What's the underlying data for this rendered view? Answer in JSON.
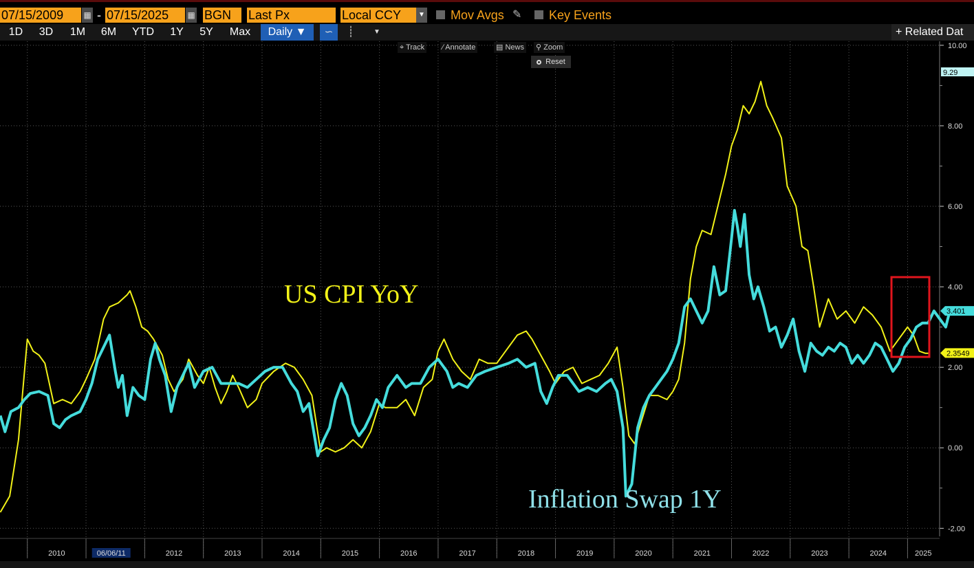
{
  "header": {
    "start_date": "07/15/2009",
    "separator": "-",
    "end_date": "07/15/2025",
    "source": "BGN",
    "field": "Last Px",
    "currency": "Local CCY",
    "mov_avgs_label": "Mov Avgs",
    "key_events_label": "Key Events"
  },
  "toolbar": {
    "ranges": [
      "1D",
      "3D",
      "1M",
      "6M",
      "YTD",
      "1Y",
      "5Y",
      "Max"
    ],
    "frequency": "Daily ▼",
    "related_label": "+ Related Dat"
  },
  "chart_tools": {
    "track": "Track",
    "annotate": "Annotate",
    "news": "News",
    "zoom": "Zoom",
    "reset": "Reset"
  },
  "colors": {
    "cpi": "#f2f218",
    "swap": "#45dcdc",
    "accent_orange": "#f7a21b",
    "highlight_box": "#e0151d"
  },
  "chart_data": {
    "type": "line",
    "x_axis": {
      "labels": [
        "2010",
        "2011",
        "2012",
        "2013",
        "2014",
        "2015",
        "2016",
        "2017",
        "2018",
        "2019",
        "2020",
        "2021",
        "2022",
        "2023",
        "2024",
        "2025"
      ],
      "cursor_label": "06/06/11",
      "range": [
        "2009-07-15",
        "2025-07-15"
      ]
    },
    "y_axis": {
      "ticks": [
        "10.00",
        "8.00",
        "6.00",
        "4.00",
        "2.00",
        "0.00",
        "-2.00"
      ],
      "range": [
        -2.2,
        10.1
      ],
      "position": "right"
    },
    "grid": true,
    "series": [
      {
        "name": "US CPI YoY",
        "last_value": "2.3549",
        "points": [
          [
            2009.54,
            -1.6
          ],
          [
            2009.7,
            -1.2
          ],
          [
            2009.85,
            0.2
          ],
          [
            2010.0,
            2.7
          ],
          [
            2010.1,
            2.4
          ],
          [
            2010.2,
            2.3
          ],
          [
            2010.3,
            2.1
          ],
          [
            2010.45,
            1.1
          ],
          [
            2010.6,
            1.2
          ],
          [
            2010.75,
            1.1
          ],
          [
            2010.9,
            1.4
          ],
          [
            2011.0,
            1.7
          ],
          [
            2011.15,
            2.2
          ],
          [
            2011.3,
            3.2
          ],
          [
            2011.4,
            3.5
          ],
          [
            2011.55,
            3.6
          ],
          [
            2011.7,
            3.8
          ],
          [
            2011.75,
            3.9
          ],
          [
            2011.85,
            3.5
          ],
          [
            2011.95,
            3.0
          ],
          [
            2012.05,
            2.9
          ],
          [
            2012.15,
            2.7
          ],
          [
            2012.3,
            2.3
          ],
          [
            2012.4,
            1.7
          ],
          [
            2012.5,
            1.4
          ],
          [
            2012.65,
            1.7
          ],
          [
            2012.75,
            2.2
          ],
          [
            2012.9,
            1.8
          ],
          [
            2013.0,
            1.6
          ],
          [
            2013.1,
            2.0
          ],
          [
            2013.2,
            1.5
          ],
          [
            2013.3,
            1.1
          ],
          [
            2013.4,
            1.4
          ],
          [
            2013.5,
            1.8
          ],
          [
            2013.6,
            1.5
          ],
          [
            2013.75,
            1.0
          ],
          [
            2013.9,
            1.2
          ],
          [
            2014.0,
            1.6
          ],
          [
            2014.2,
            1.9
          ],
          [
            2014.4,
            2.1
          ],
          [
            2014.55,
            2.0
          ],
          [
            2014.7,
            1.7
          ],
          [
            2014.85,
            1.3
          ],
          [
            2015.0,
            -0.1
          ],
          [
            2015.1,
            0.0
          ],
          [
            2015.25,
            -0.1
          ],
          [
            2015.4,
            0.0
          ],
          [
            2015.55,
            0.2
          ],
          [
            2015.7,
            0.0
          ],
          [
            2015.85,
            0.4
          ],
          [
            2016.0,
            1.1
          ],
          [
            2016.1,
            1.0
          ],
          [
            2016.3,
            1.0
          ],
          [
            2016.45,
            1.2
          ],
          [
            2016.6,
            0.8
          ],
          [
            2016.75,
            1.5
          ],
          [
            2016.9,
            1.7
          ],
          [
            2017.0,
            2.4
          ],
          [
            2017.1,
            2.7
          ],
          [
            2017.25,
            2.2
          ],
          [
            2017.4,
            1.9
          ],
          [
            2017.55,
            1.7
          ],
          [
            2017.7,
            2.2
          ],
          [
            2017.85,
            2.1
          ],
          [
            2018.0,
            2.1
          ],
          [
            2018.15,
            2.4
          ],
          [
            2018.35,
            2.8
          ],
          [
            2018.5,
            2.9
          ],
          [
            2018.6,
            2.7
          ],
          [
            2018.75,
            2.3
          ],
          [
            2018.9,
            1.9
          ],
          [
            2019.0,
            1.6
          ],
          [
            2019.15,
            1.9
          ],
          [
            2019.3,
            2.0
          ],
          [
            2019.45,
            1.6
          ],
          [
            2019.6,
            1.7
          ],
          [
            2019.75,
            1.8
          ],
          [
            2019.9,
            2.1
          ],
          [
            2020.05,
            2.5
          ],
          [
            2020.15,
            1.5
          ],
          [
            2020.25,
            0.3
          ],
          [
            2020.35,
            0.1
          ],
          [
            2020.45,
            0.6
          ],
          [
            2020.6,
            1.3
          ],
          [
            2020.75,
            1.3
          ],
          [
            2020.9,
            1.2
          ],
          [
            2021.0,
            1.4
          ],
          [
            2021.1,
            1.7
          ],
          [
            2021.2,
            2.6
          ],
          [
            2021.3,
            4.2
          ],
          [
            2021.4,
            5.0
          ],
          [
            2021.5,
            5.4
          ],
          [
            2021.65,
            5.3
          ],
          [
            2021.8,
            6.2
          ],
          [
            2021.9,
            6.8
          ],
          [
            2022.0,
            7.5
          ],
          [
            2022.1,
            7.9
          ],
          [
            2022.2,
            8.5
          ],
          [
            2022.3,
            8.3
          ],
          [
            2022.4,
            8.6
          ],
          [
            2022.5,
            9.1
          ],
          [
            2022.6,
            8.5
          ],
          [
            2022.7,
            8.2
          ],
          [
            2022.85,
            7.7
          ],
          [
            2022.95,
            6.5
          ],
          [
            2023.1,
            6.0
          ],
          [
            2023.2,
            5.0
          ],
          [
            2023.3,
            4.9
          ],
          [
            2023.4,
            4.0
          ],
          [
            2023.5,
            3.0
          ],
          [
            2023.65,
            3.7
          ],
          [
            2023.8,
            3.2
          ],
          [
            2023.95,
            3.4
          ],
          [
            2024.1,
            3.1
          ],
          [
            2024.25,
            3.5
          ],
          [
            2024.4,
            3.3
          ],
          [
            2024.55,
            3.0
          ],
          [
            2024.7,
            2.4
          ],
          [
            2024.85,
            2.7
          ],
          [
            2025.0,
            3.0
          ],
          [
            2025.1,
            2.8
          ],
          [
            2025.2,
            2.4
          ],
          [
            2025.3,
            2.35
          ],
          [
            2025.38,
            2.35
          ]
        ]
      },
      {
        "name": "Inflation Swap 1Y",
        "last_value": "3.401",
        "points": [
          [
            2009.54,
            0.8
          ],
          [
            2009.62,
            0.4
          ],
          [
            2009.72,
            0.9
          ],
          [
            2009.85,
            1.0
          ],
          [
            2009.95,
            1.2
          ],
          [
            2010.05,
            1.35
          ],
          [
            2010.2,
            1.4
          ],
          [
            2010.35,
            1.3
          ],
          [
            2010.45,
            0.6
          ],
          [
            2010.55,
            0.5
          ],
          [
            2010.65,
            0.7
          ],
          [
            2010.75,
            0.8
          ],
          [
            2010.9,
            0.9
          ],
          [
            2011.0,
            1.2
          ],
          [
            2011.1,
            1.6
          ],
          [
            2011.2,
            2.2
          ],
          [
            2011.3,
            2.5
          ],
          [
            2011.4,
            2.8
          ],
          [
            2011.5,
            1.9
          ],
          [
            2011.55,
            1.5
          ],
          [
            2011.62,
            1.8
          ],
          [
            2011.7,
            0.8
          ],
          [
            2011.8,
            1.5
          ],
          [
            2011.9,
            1.3
          ],
          [
            2012.0,
            1.2
          ],
          [
            2012.1,
            2.2
          ],
          [
            2012.18,
            2.6
          ],
          [
            2012.25,
            2.2
          ],
          [
            2012.35,
            1.8
          ],
          [
            2012.45,
            0.9
          ],
          [
            2012.55,
            1.5
          ],
          [
            2012.65,
            1.8
          ],
          [
            2012.75,
            2.1
          ],
          [
            2012.85,
            1.5
          ],
          [
            2013.0,
            1.9
          ],
          [
            2013.15,
            2.0
          ],
          [
            2013.3,
            1.6
          ],
          [
            2013.45,
            1.6
          ],
          [
            2013.6,
            1.6
          ],
          [
            2013.75,
            1.5
          ],
          [
            2013.9,
            1.7
          ],
          [
            2014.05,
            1.9
          ],
          [
            2014.2,
            2.0
          ],
          [
            2014.35,
            2.0
          ],
          [
            2014.5,
            1.6
          ],
          [
            2014.6,
            1.4
          ],
          [
            2014.7,
            0.9
          ],
          [
            2014.8,
            1.1
          ],
          [
            2014.95,
            -0.2
          ],
          [
            2015.05,
            0.2
          ],
          [
            2015.15,
            0.5
          ],
          [
            2015.25,
            1.2
          ],
          [
            2015.35,
            1.6
          ],
          [
            2015.45,
            1.3
          ],
          [
            2015.55,
            0.6
          ],
          [
            2015.65,
            0.3
          ],
          [
            2015.75,
            0.5
          ],
          [
            2015.85,
            0.8
          ],
          [
            2015.95,
            1.2
          ],
          [
            2016.05,
            1.0
          ],
          [
            2016.15,
            1.5
          ],
          [
            2016.3,
            1.8
          ],
          [
            2016.45,
            1.5
          ],
          [
            2016.55,
            1.6
          ],
          [
            2016.7,
            1.6
          ],
          [
            2016.85,
            2.0
          ],
          [
            2017.0,
            2.2
          ],
          [
            2017.15,
            1.9
          ],
          [
            2017.25,
            1.5
          ],
          [
            2017.35,
            1.6
          ],
          [
            2017.5,
            1.5
          ],
          [
            2017.65,
            1.8
          ],
          [
            2017.8,
            1.9
          ],
          [
            2018.0,
            2.0
          ],
          [
            2018.2,
            2.1
          ],
          [
            2018.35,
            2.2
          ],
          [
            2018.5,
            2.0
          ],
          [
            2018.65,
            2.1
          ],
          [
            2018.75,
            1.4
          ],
          [
            2018.85,
            1.1
          ],
          [
            2018.95,
            1.5
          ],
          [
            2019.05,
            1.8
          ],
          [
            2019.2,
            1.8
          ],
          [
            2019.3,
            1.6
          ],
          [
            2019.4,
            1.4
          ],
          [
            2019.55,
            1.5
          ],
          [
            2019.7,
            1.4
          ],
          [
            2019.85,
            1.6
          ],
          [
            2019.95,
            1.7
          ],
          [
            2020.05,
            1.4
          ],
          [
            2020.15,
            0.5
          ],
          [
            2020.2,
            -1.2
          ],
          [
            2020.3,
            -0.9
          ],
          [
            2020.4,
            0.5
          ],
          [
            2020.5,
            1.0
          ],
          [
            2020.6,
            1.3
          ],
          [
            2020.7,
            1.5
          ],
          [
            2020.8,
            1.7
          ],
          [
            2020.9,
            1.9
          ],
          [
            2021.0,
            2.2
          ],
          [
            2021.1,
            2.6
          ],
          [
            2021.2,
            3.5
          ],
          [
            2021.3,
            3.7
          ],
          [
            2021.4,
            3.4
          ],
          [
            2021.5,
            3.1
          ],
          [
            2021.6,
            3.4
          ],
          [
            2021.7,
            4.5
          ],
          [
            2021.8,
            3.8
          ],
          [
            2021.9,
            3.9
          ],
          [
            2022.0,
            5.2
          ],
          [
            2022.05,
            5.9
          ],
          [
            2022.1,
            5.5
          ],
          [
            2022.15,
            5.0
          ],
          [
            2022.22,
            5.8
          ],
          [
            2022.3,
            4.3
          ],
          [
            2022.38,
            3.7
          ],
          [
            2022.45,
            4.0
          ],
          [
            2022.55,
            3.5
          ],
          [
            2022.65,
            2.9
          ],
          [
            2022.75,
            3.0
          ],
          [
            2022.85,
            2.5
          ],
          [
            2022.95,
            2.8
          ],
          [
            2023.05,
            3.2
          ],
          [
            2023.15,
            2.4
          ],
          [
            2023.25,
            1.9
          ],
          [
            2023.35,
            2.6
          ],
          [
            2023.45,
            2.4
          ],
          [
            2023.55,
            2.3
          ],
          [
            2023.65,
            2.5
          ],
          [
            2023.75,
            2.4
          ],
          [
            2023.85,
            2.6
          ],
          [
            2023.95,
            2.5
          ],
          [
            2024.05,
            2.1
          ],
          [
            2024.15,
            2.3
          ],
          [
            2024.25,
            2.1
          ],
          [
            2024.35,
            2.3
          ],
          [
            2024.45,
            2.6
          ],
          [
            2024.55,
            2.5
          ],
          [
            2024.65,
            2.2
          ],
          [
            2024.75,
            1.9
          ],
          [
            2024.85,
            2.1
          ],
          [
            2024.95,
            2.5
          ],
          [
            2025.05,
            2.7
          ],
          [
            2025.15,
            3.0
          ],
          [
            2025.25,
            3.1
          ],
          [
            2025.35,
            3.1
          ],
          [
            2025.45,
            3.4
          ],
          [
            2025.55,
            3.2
          ],
          [
            2025.65,
            3.0
          ],
          [
            2025.72,
            3.4
          ]
        ]
      }
    ],
    "annotations": {
      "cpi_label": "US CPI YoY",
      "swap_label": "Inflation Swap 1Y",
      "top_right_value": "9.29"
    }
  }
}
